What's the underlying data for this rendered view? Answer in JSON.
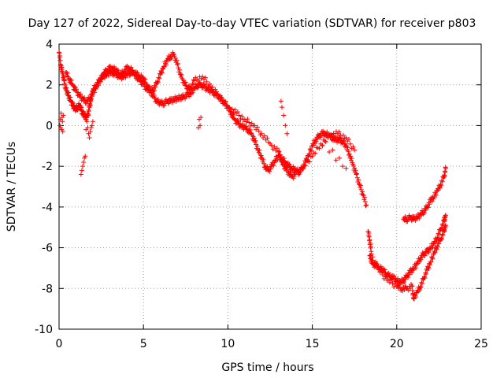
{
  "chart_data": {
    "type": "scatter",
    "title": "Day 127 of 2022, Sidereal Day-to-day VTEC variation (SDTVAR) for receiver p803",
    "xlabel": "GPS time / hours",
    "ylabel": "SDTVAR / TECUs",
    "xlim": [
      0,
      25
    ],
    "ylim": [
      -10,
      4
    ],
    "xticks": [
      "0",
      "5",
      "10",
      "15",
      "20",
      "25"
    ],
    "yticks": [
      "-10",
      "-8",
      "-6",
      "-4",
      "-2",
      "0",
      "2",
      "4"
    ],
    "marker": "+",
    "color": "#ff0000",
    "grid": true,
    "series": [
      {
        "name": "main",
        "x": [
          0.0,
          0.1,
          0.2,
          0.3,
          0.4,
          0.5,
          0.6,
          0.7,
          0.8,
          0.9,
          1.0,
          1.1,
          1.2,
          1.3,
          1.4,
          1.5,
          1.6,
          1.7,
          1.8,
          1.9,
          2.0,
          2.2,
          2.4,
          2.6,
          2.8,
          3.0,
          3.2,
          3.4,
          3.6,
          3.8,
          4.0,
          4.2,
          4.4,
          4.6,
          4.8,
          5.0,
          5.2,
          5.4,
          5.6,
          5.8,
          6.0,
          6.2,
          6.4,
          6.6,
          6.8,
          7.0,
          7.2,
          7.4,
          7.6,
          7.8,
          8.0,
          8.2,
          8.4,
          8.6,
          8.8,
          9.0,
          9.2,
          9.4,
          9.6,
          9.8,
          10.0,
          10.2,
          10.4,
          10.6,
          10.8,
          11.0,
          11.2,
          11.4,
          11.6,
          11.8,
          12.0,
          12.2,
          12.4,
          12.6,
          12.8,
          13.0,
          13.2,
          13.4,
          13.6,
          13.8,
          14.0,
          14.2,
          14.4,
          14.6,
          14.8,
          15.0,
          15.2,
          15.4,
          15.6,
          15.8,
          16.0,
          16.2,
          16.4,
          16.6,
          16.8,
          17.0,
          17.2,
          17.4,
          17.6,
          17.8,
          18.0,
          18.2
        ],
        "y": [
          3.6,
          3.0,
          2.6,
          2.2,
          1.8,
          1.6,
          1.4,
          1.2,
          1.0,
          0.9,
          0.8,
          0.9,
          1.0,
          0.8,
          0.6,
          0.5,
          0.4,
          0.5,
          0.9,
          1.3,
          1.7,
          2.0,
          2.2,
          2.4,
          2.5,
          2.6,
          2.6,
          2.5,
          2.4,
          2.4,
          2.5,
          2.6,
          2.6,
          2.5,
          2.4,
          2.3,
          2.0,
          1.7,
          1.4,
          1.2,
          1.1,
          1.1,
          1.2,
          1.2,
          1.3,
          1.3,
          1.4,
          1.4,
          1.5,
          1.6,
          1.8,
          2.0,
          2.0,
          1.9,
          1.8,
          1.7,
          1.6,
          1.5,
          1.3,
          1.1,
          0.9,
          0.6,
          0.3,
          0.1,
          0.0,
          -0.1,
          -0.2,
          -0.4,
          -0.8,
          -1.2,
          -1.6,
          -2.0,
          -2.2,
          -2.0,
          -1.7,
          -1.5,
          -1.6,
          -1.8,
          -2.0,
          -2.1,
          -2.2,
          -2.3,
          -2.1,
          -1.8,
          -1.4,
          -1.0,
          -0.7,
          -0.5,
          -0.4,
          -0.4,
          -0.5,
          -0.6,
          -0.7,
          -0.7,
          -0.8,
          -1.0,
          -1.4,
          -1.9,
          -2.4,
          -2.9,
          -3.4,
          -3.9
        ]
      },
      {
        "name": "upper-branch",
        "x": [
          0.4,
          0.6,
          0.8,
          1.0,
          1.2,
          1.4,
          1.6,
          1.8,
          2.0,
          2.2,
          2.4,
          2.6,
          2.8,
          3.0,
          3.2,
          3.4,
          3.6,
          3.8,
          4.0,
          4.2,
          4.4,
          4.6,
          4.8,
          5.0,
          5.2,
          5.4,
          5.6,
          5.8,
          6.0,
          6.2,
          6.4,
          6.6,
          6.8,
          7.0,
          7.2,
          7.4,
          7.6,
          7.8,
          8.0,
          8.5,
          9.0,
          9.5,
          10.0,
          10.5,
          11.0,
          11.5,
          12.0,
          12.5,
          13.0,
          13.2,
          13.4,
          13.6,
          13.8,
          14.0,
          14.5,
          15.0,
          15.5,
          16.0,
          16.5,
          17.0,
          17.5
        ],
        "y": [
          2.6,
          2.3,
          2.0,
          1.7,
          1.5,
          1.3,
          1.2,
          1.3,
          1.6,
          1.9,
          2.2,
          2.5,
          2.7,
          2.8,
          2.8,
          2.7,
          2.5,
          2.6,
          2.8,
          2.8,
          2.6,
          2.4,
          2.2,
          2.0,
          1.8,
          1.7,
          1.8,
          2.1,
          2.5,
          2.9,
          3.2,
          3.4,
          3.5,
          3.0,
          2.5,
          2.1,
          1.9,
          1.8,
          2.2,
          2.4,
          1.9,
          1.4,
          0.9,
          0.6,
          0.3,
          0.0,
          -0.4,
          -0.9,
          -1.3,
          -1.8,
          -2.1,
          -2.3,
          -2.5,
          -2.4,
          -2.0,
          -1.5,
          -0.9,
          -0.5,
          -0.4,
          -0.6,
          -1.2
        ]
      },
      {
        "name": "isolated",
        "x": [
          0.05,
          0.08,
          0.1,
          0.12,
          0.15,
          0.18,
          0.2,
          0.22,
          0.25,
          1.3,
          1.35,
          1.4,
          1.45,
          1.5,
          1.55,
          1.6,
          1.65,
          1.7,
          1.75,
          1.8,
          1.85,
          1.9,
          1.95,
          2.0,
          8.25,
          8.3,
          8.35,
          8.4,
          13.15,
          13.2,
          13.3,
          13.4,
          13.5,
          15.6,
          15.8,
          16.0,
          16.2,
          16.4,
          16.6,
          16.8,
          17.0
        ],
        "y": [
          0.0,
          0.3,
          -0.1,
          0.6,
          -0.2,
          0.4,
          0.2,
          -0.3,
          0.5,
          -2.4,
          -2.2,
          -2.0,
          -1.8,
          -1.6,
          -1.5,
          -0.2,
          0.2,
          -0.1,
          -0.4,
          -0.6,
          -0.3,
          -0.1,
          0.0,
          0.2,
          -0.1,
          0.3,
          0.0,
          0.4,
          1.2,
          0.9,
          0.5,
          0.0,
          -0.4,
          -1.0,
          -0.8,
          -1.3,
          -1.2,
          -1.7,
          -1.6,
          -2.0,
          -2.1
        ]
      },
      {
        "name": "late-lower",
        "x": [
          18.4,
          18.5,
          18.6,
          18.8,
          19.0,
          19.2,
          19.4,
          19.6,
          19.8,
          20.0,
          20.2,
          20.4,
          20.6,
          20.8,
          21.0,
          21.2,
          21.4,
          21.6,
          21.8,
          22.0,
          22.2,
          22.4,
          22.6,
          22.8,
          22.9
        ],
        "y": [
          -6.4,
          -6.6,
          -6.8,
          -6.9,
          -7.0,
          -7.1,
          -7.3,
          -7.4,
          -7.5,
          -7.6,
          -7.7,
          -7.6,
          -7.4,
          -7.2,
          -7.0,
          -6.8,
          -6.5,
          -6.3,
          -6.2,
          -6.0,
          -5.8,
          -5.5,
          -5.1,
          -4.7,
          -4.4
        ]
      },
      {
        "name": "late-low-dip",
        "x": [
          18.3,
          18.4,
          18.5,
          19.0,
          19.5,
          20.0,
          20.3,
          20.6,
          20.9,
          21.0,
          21.2,
          21.4,
          21.6,
          21.8,
          22.0,
          22.2,
          22.4,
          22.6,
          22.8,
          22.9
        ],
        "y": [
          -5.2,
          -5.6,
          -6.3,
          -7.2,
          -7.6,
          -7.9,
          -8.0,
          -8.0,
          -7.9,
          -8.5,
          -8.2,
          -7.9,
          -7.5,
          -7.1,
          -6.7,
          -6.3,
          -5.9,
          -5.6,
          -5.2,
          -4.9
        ]
      },
      {
        "name": "late-upper",
        "x": [
          20.4,
          20.6,
          20.8,
          21.0,
          21.2,
          21.4,
          21.6,
          21.8,
          22.0,
          22.2,
          22.4,
          22.6,
          22.8,
          22.9
        ],
        "y": [
          -4.6,
          -4.6,
          -4.5,
          -4.6,
          -4.5,
          -4.4,
          -4.2,
          -4.0,
          -3.7,
          -3.5,
          -3.2,
          -2.9,
          -2.5,
          -2.1
        ]
      }
    ]
  }
}
